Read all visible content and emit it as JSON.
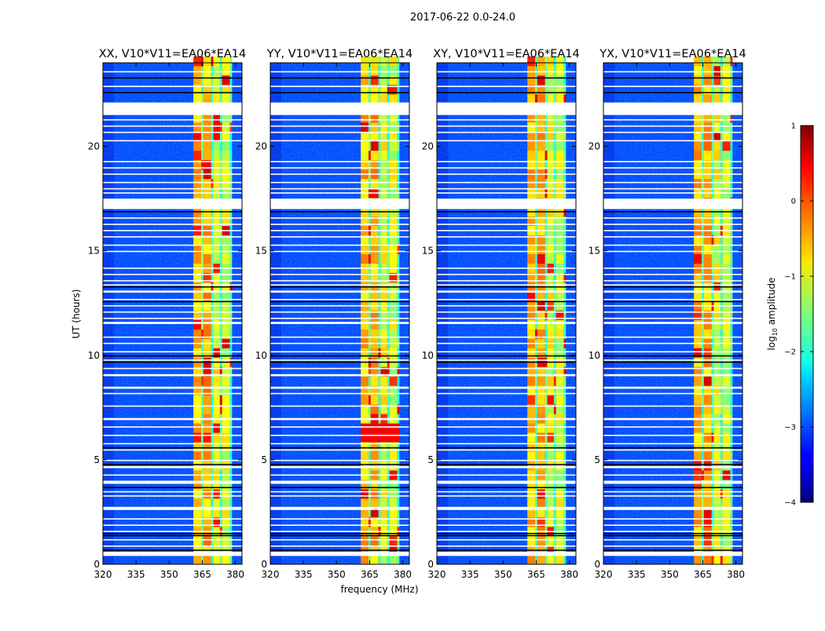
{
  "figure": {
    "suptitle": "2017-06-22 0.0-24.0",
    "xlabel": "frequency (MHz)",
    "ylabel": "UT (hours)"
  },
  "colorbar": {
    "label": "log",
    "label_sub": "10",
    "label_rest": " amplitude",
    "ticks": [
      "1",
      "0",
      "−1",
      "−2",
      "−3",
      "−4"
    ],
    "min": -4,
    "max": 1,
    "colormap": "jet"
  },
  "chart_data": {
    "type": "heatmap",
    "title": "2017-06-22 0.0-24.0",
    "xlabel": "frequency (MHz)",
    "ylabel": "UT (hours)",
    "xlim": [
      320,
      383
    ],
    "ylim": [
      0,
      24
    ],
    "xticks": [
      "320",
      "335",
      "350",
      "365",
      "380"
    ],
    "yticks": [
      "0",
      "5",
      "10",
      "15",
      "20"
    ],
    "color_scale": "log10 amplitude",
    "color_range": [
      -4,
      1
    ],
    "panels": [
      {
        "title": "XX, V10*V11=EA06*EA14"
      },
      {
        "title": "YY, V10*V11=EA06*EA14"
      },
      {
        "title": "XY, V10*V11=EA06*EA14"
      },
      {
        "title": "YX, V10*V11=EA06*EA14"
      }
    ],
    "bright_band_mhz": [
      360,
      378
    ],
    "background_log10_amplitude": -3,
    "band_log10_amplitude": -1,
    "flagged_time_ranges_hours": [
      [
        22.1,
        21.5
      ],
      [
        17.5,
        17.0
      ],
      [
        0.4,
        0.6
      ],
      [
        2.6,
        2.8
      ],
      [
        3.9,
        4.0
      ]
    ]
  }
}
